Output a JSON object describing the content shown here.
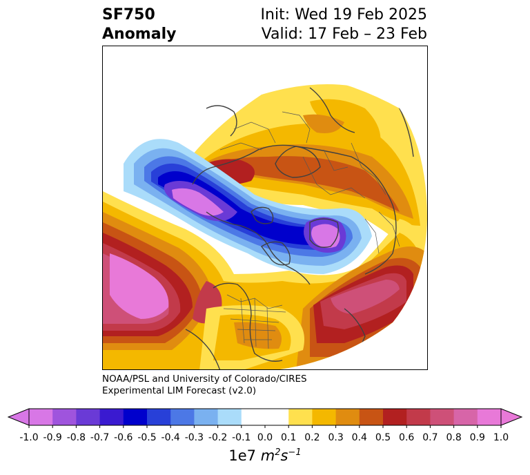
{
  "title": {
    "left_line1": "SF750",
    "left_line2": "Anomaly",
    "right_line1": "Init: Wed 19 Feb 2025",
    "right_line2": "Valid: 17 Feb – 23 Feb"
  },
  "credit": {
    "line1": "NOAA/PSL and University of Colorado/CIRES",
    "line2": "Experimental LIM Forecast (v2.0)"
  },
  "colorbar": {
    "ticks": [
      "-1.0",
      "-0.9",
      "-0.8",
      "-0.7",
      "-0.6",
      "-0.5",
      "-0.4",
      "-0.3",
      "-0.2",
      "-0.1",
      "0.0",
      "0.1",
      "0.2",
      "0.3",
      "0.4",
      "0.5",
      "0.6",
      "0.7",
      "0.8",
      "0.9",
      "1.0"
    ],
    "colors": [
      "#d877e6",
      "#9f54dd",
      "#6a3ad6",
      "#3a1ad0",
      "#0000cc",
      "#2840d8",
      "#4c78e6",
      "#7ab1f0",
      "#aadcfa",
      "#ffffff",
      "#ffffff",
      "#ffe04e",
      "#f4b800",
      "#e08c10",
      "#c85414",
      "#b22020",
      "#c23a4a",
      "#ce5078",
      "#d765a8",
      "#e879d8"
    ],
    "units_prefix": "1e7 ",
    "units_m": "m",
    "units_m_exp": "2",
    "units_s": "s",
    "units_s_exp": "−1"
  },
  "map": {
    "projection": "north-polar-stereographic",
    "field": "streamfunction anomaly, 750 hPa",
    "colors": {
      "coast": "#404040",
      "border": "#555555"
    }
  }
}
